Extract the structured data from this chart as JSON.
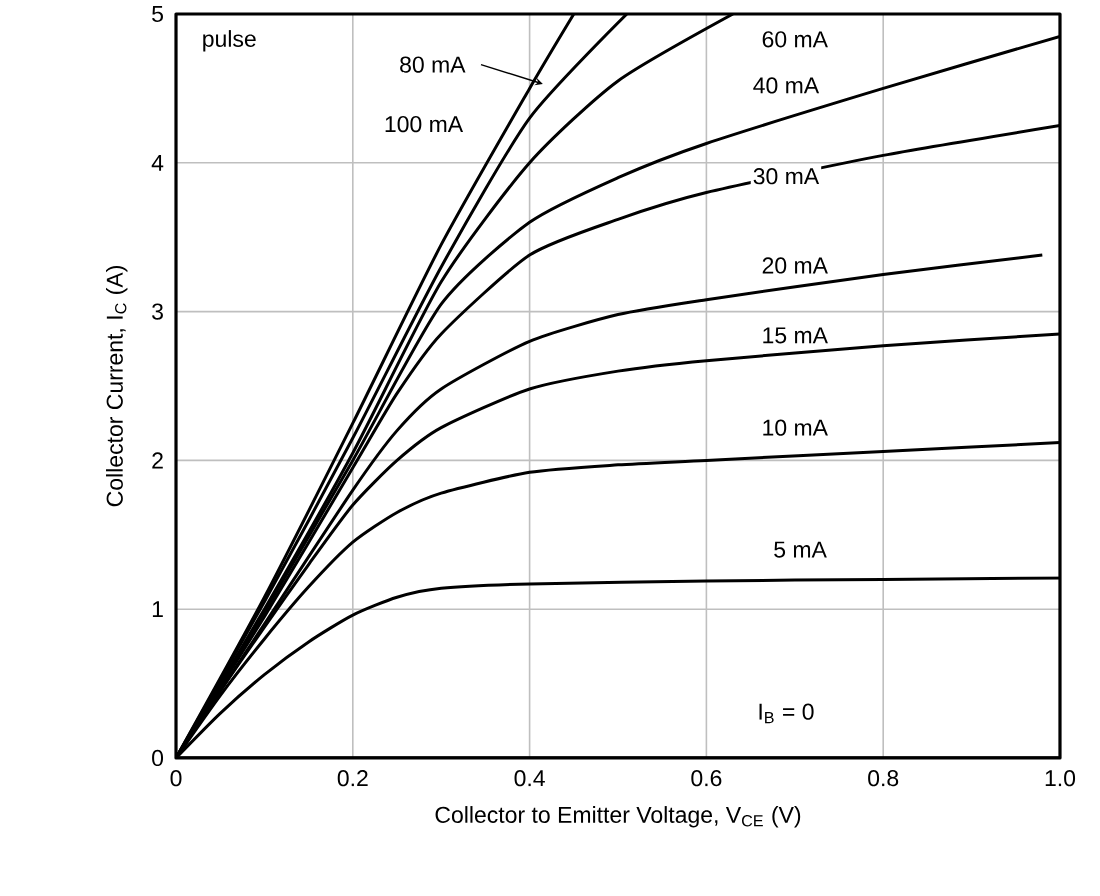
{
  "chart_data": {
    "type": "line",
    "xlabel": "Collector to Emitter Voltage, V$_{CE}$ (V)",
    "ylabel": "Collector Current, I$_{C}$ (A)",
    "xlim": [
      0,
      1.0
    ],
    "ylim": [
      0,
      5
    ],
    "xticks": [
      0,
      0.2,
      0.4,
      0.6,
      0.8,
      {
        "value": 1,
        "label": "1.0"
      }
    ],
    "yticks": [
      0,
      1,
      2,
      3,
      4,
      5
    ],
    "grid": true,
    "marker": "none",
    "line_style": "solid",
    "annotations": [
      "pulse"
    ],
    "series": [
      {
        "name": "5 mA",
        "color": "#000000",
        "x": [
          0,
          0.05,
          0.1,
          0.15,
          0.2,
          0.25,
          0.3,
          0.4,
          0.6,
          0.8,
          1.0
        ],
        "values": [
          0,
          0.3,
          0.56,
          0.78,
          0.96,
          1.08,
          1.14,
          1.17,
          1.19,
          1.2,
          1.21
        ]
      },
      {
        "name": "10 mA",
        "color": "#000000",
        "x": [
          0,
          0.05,
          0.1,
          0.15,
          0.2,
          0.25,
          0.3,
          0.4,
          0.5,
          0.6,
          0.8,
          1.0
        ],
        "values": [
          0,
          0.42,
          0.8,
          1.15,
          1.45,
          1.65,
          1.78,
          1.92,
          1.97,
          2.0,
          2.06,
          2.12
        ]
      },
      {
        "name": "15 mA",
        "color": "#000000",
        "x": [
          0,
          0.05,
          0.1,
          0.15,
          0.2,
          0.25,
          0.3,
          0.4,
          0.5,
          0.6,
          0.8,
          1.0
        ],
        "values": [
          0,
          0.45,
          0.88,
          1.3,
          1.7,
          2.0,
          2.22,
          2.48,
          2.6,
          2.67,
          2.77,
          2.85
        ]
      },
      {
        "name": "20 mA",
        "color": "#000000",
        "x": [
          0,
          0.1,
          0.2,
          0.25,
          0.3,
          0.4,
          0.5,
          0.6,
          0.8,
          0.98
        ],
        "values": [
          0,
          0.9,
          1.8,
          2.2,
          2.48,
          2.8,
          2.98,
          3.08,
          3.25,
          3.38
        ]
      },
      {
        "name": "30 mA",
        "color": "#000000",
        "x": [
          0,
          0.1,
          0.2,
          0.25,
          0.3,
          0.4,
          0.5,
          0.6,
          0.8,
          1.0
        ],
        "values": [
          0,
          0.95,
          1.95,
          2.45,
          2.85,
          3.38,
          3.62,
          3.8,
          4.05,
          4.25
        ]
      },
      {
        "name": "40 mA",
        "color": "#000000",
        "x": [
          0,
          0.1,
          0.2,
          0.3,
          0.4,
          0.5,
          0.6,
          0.8,
          1.0
        ],
        "values": [
          0,
          0.98,
          2.0,
          3.05,
          3.6,
          3.9,
          4.13,
          4.5,
          4.85
        ]
      },
      {
        "name": "60 mA",
        "color": "#000000",
        "x": [
          0,
          0.1,
          0.2,
          0.3,
          0.4,
          0.5,
          0.63
        ],
        "values": [
          0,
          1.0,
          2.05,
          3.2,
          4.0,
          4.55,
          5.0
        ]
      },
      {
        "name": "80 mA",
        "color": "#000000",
        "x": [
          0,
          0.1,
          0.2,
          0.3,
          0.4,
          0.51
        ],
        "values": [
          0,
          1.05,
          2.15,
          3.3,
          4.3,
          5.0
        ]
      },
      {
        "name": "100 mA",
        "color": "#000000",
        "x": [
          0,
          0.1,
          0.2,
          0.3,
          0.4,
          0.45
        ],
        "values": [
          0,
          1.08,
          2.25,
          3.45,
          4.5,
          5.0
        ]
      },
      {
        "name": "I$_{B}$ = 0",
        "color": "#000000",
        "x": [
          0,
          1.0
        ],
        "values": [
          0,
          0
        ]
      }
    ]
  }
}
